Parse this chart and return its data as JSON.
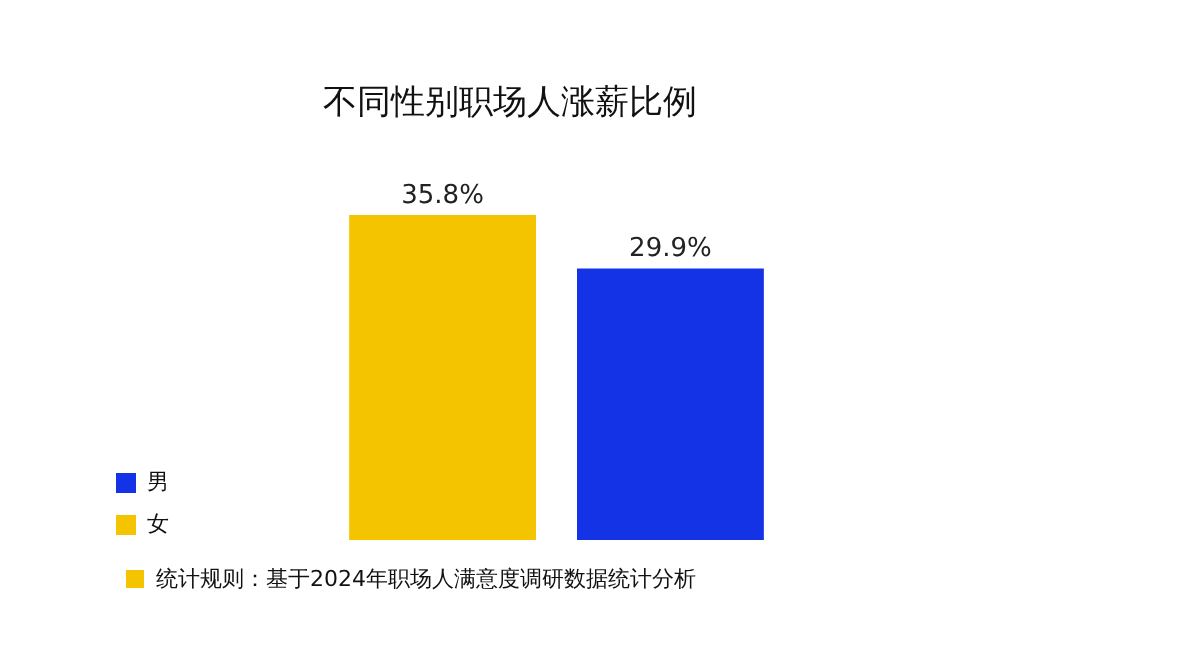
{
  "chart_data": {
    "type": "bar",
    "title": "不同性别职场人涨薪比例",
    "categories": [
      null
    ],
    "series": [
      {
        "name": "女",
        "color": "#f5c400",
        "values": [
          35.8
        ],
        "value_labels": [
          "35.8%"
        ]
      },
      {
        "name": "男",
        "color": "#1432e6",
        "values": [
          29.9
        ],
        "value_labels": [
          "29.9%"
        ]
      }
    ],
    "legend": "left",
    "grid": false,
    "annotations": [
      "统计规则：基于2024年职场人满意度调研数据统计分析"
    ]
  }
}
